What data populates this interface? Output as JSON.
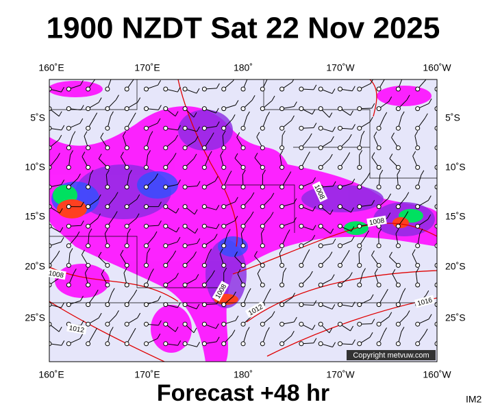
{
  "header": {
    "title": "1900 NZDT Sat 22 Nov 2025"
  },
  "axes": {
    "top": [
      "160˚E",
      "170˚E",
      "180˚",
      "170˚W",
      "160˚W"
    ],
    "bottom": [
      "160˚E",
      "170˚E",
      "180˚",
      "170˚W",
      "160˚W"
    ],
    "left": [
      "5˚S",
      "10˚S",
      "15˚S",
      "20˚S",
      "25˚S"
    ],
    "right": [
      "5˚S",
      "10˚S",
      "15˚S",
      "20˚S",
      "25˚S"
    ]
  },
  "contour_labels": [
    "1008",
    "1008",
    "1008",
    "1012",
    "1016",
    "1012",
    "1008"
  ],
  "copyright": "Copyright metvuw.com",
  "footer": {
    "forecast": "Forecast +48 hr",
    "code": "IM2"
  }
}
